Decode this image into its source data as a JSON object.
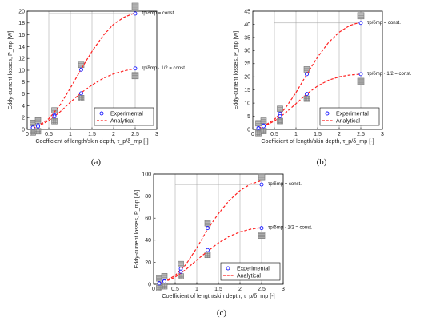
{
  "chart_data": [
    {
      "panel": "(a)",
      "type": "line",
      "ylabel": "Eddy-current losses, P_mp [W]",
      "xlabel": "Coefficient of length/skin depth, τ_p/δ_mp [-]",
      "xlim": [
        0,
        3
      ],
      "ylim": [
        0,
        20
      ],
      "xticks": [
        0,
        0.5,
        1,
        1.5,
        2,
        2.5,
        3
      ],
      "yticks": [
        0,
        2,
        4,
        6,
        8,
        10,
        12,
        14,
        16,
        18,
        20
      ],
      "legend": {
        "position": "bottom-right",
        "entries": [
          "Experimental",
          "Analytical"
        ]
      },
      "series": [
        {
          "name": "Experimental",
          "x": [
            0.13,
            0.25,
            0.63,
            1.25,
            2.5,
            0.13,
            0.25,
            0.63,
            1.25,
            2.5
          ],
          "y": [
            0.3,
            0.7,
            2.4,
            10.1,
            19.6,
            0.3,
            0.5,
            2.2,
            6.1,
            10.3
          ]
        },
        {
          "name": "Analytical",
          "curves": [
            {
              "x": [
                0.13,
                0.25,
                0.5,
                0.75,
                1.0,
                1.25,
                1.5,
                1.75,
                2.0,
                2.25,
                2.5
              ],
              "y": [
                0.2,
                0.6,
                1.8,
                4.0,
                7.0,
                10.2,
                13.2,
                15.8,
                17.8,
                19.0,
                19.7
              ]
            },
            {
              "x": [
                0.13,
                0.25,
                0.5,
                0.75,
                1.0,
                1.25,
                1.5,
                1.75,
                2.0,
                2.25,
                2.5
              ],
              "y": [
                0.2,
                0.5,
                1.5,
                2.9,
                4.6,
                6.2,
                7.5,
                8.6,
                9.4,
                9.9,
                10.3
              ]
            }
          ]
        }
      ],
      "annotations": [
        "τp/δmp = const.",
        "τp/δmp · 1/2 = const."
      ]
    },
    {
      "panel": "(b)",
      "type": "line",
      "ylabel": "Eddy-current losses, P_mp [W]",
      "xlabel": "Coefficient of length/skin depth, τ_p/δ_mp [-]",
      "xlim": [
        0,
        3
      ],
      "ylim": [
        0,
        45
      ],
      "xticks": [
        0,
        0.5,
        1,
        1.5,
        2,
        2.5,
        3
      ],
      "yticks": [
        0,
        5,
        10,
        15,
        20,
        25,
        30,
        35,
        40,
        45
      ],
      "legend": {
        "position": "bottom-right",
        "entries": [
          "Experimental",
          "Analytical"
        ]
      },
      "series": [
        {
          "name": "Experimental",
          "x": [
            0.13,
            0.25,
            0.63,
            1.25,
            2.5,
            0.13,
            0.25,
            0.63,
            1.25,
            2.5
          ],
          "y": [
            0.5,
            1.5,
            6.0,
            21.0,
            40.5,
            0.4,
            1.2,
            5.0,
            13.5,
            21.0
          ]
        },
        {
          "name": "Analytical",
          "curves": [
            {
              "x": [
                0.13,
                0.25,
                0.5,
                0.75,
                1.0,
                1.25,
                1.5,
                1.75,
                2.0,
                2.25,
                2.5
              ],
              "y": [
                0.4,
                1.2,
                3.8,
                8.0,
                14.0,
                21.0,
                27.5,
                33.0,
                37.0,
                39.6,
                40.8
              ]
            },
            {
              "x": [
                0.13,
                0.25,
                0.5,
                0.75,
                1.0,
                1.25,
                1.5,
                1.75,
                2.0,
                2.25,
                2.5
              ],
              "y": [
                0.4,
                1.0,
                3.2,
                6.2,
                9.8,
                13.5,
                16.5,
                18.7,
                20.0,
                20.7,
                21.0
              ]
            }
          ]
        }
      ],
      "annotations": [
        "τp/δmp = const.",
        "τp/δmp · 1/2 = const."
      ]
    },
    {
      "panel": "(c)",
      "type": "line",
      "ylabel": "Eddy-current losses, P_mp [W]",
      "xlabel": "Coefficient of length/skin depth, τ_p/δ_mp [-]",
      "xlim": [
        0,
        3
      ],
      "ylim": [
        0,
        100
      ],
      "xticks": [
        0,
        0.5,
        1,
        1.5,
        2,
        2.5,
        3
      ],
      "yticks": [
        0,
        20,
        40,
        60,
        80,
        100
      ],
      "legend": {
        "position": "bottom-right",
        "entries": [
          "Experimental",
          "Analytical"
        ]
      },
      "series": [
        {
          "name": "Experimental",
          "x": [
            0.13,
            0.25,
            0.63,
            1.25,
            2.5,
            0.13,
            0.25,
            0.63,
            1.25,
            2.5
          ],
          "y": [
            1.0,
            3.0,
            14.0,
            51.0,
            90.5,
            0.8,
            2.5,
            11.5,
            31.0,
            51.0
          ]
        },
        {
          "name": "Analytical",
          "curves": [
            {
              "x": [
                0.13,
                0.25,
                0.5,
                0.75,
                1.0,
                1.25,
                1.5,
                1.75,
                2.0,
                2.25,
                2.5
              ],
              "y": [
                0.8,
                2.5,
                8.0,
                18.0,
                33.0,
                50.0,
                64.0,
                76.0,
                85.0,
                91.0,
                94.0
              ]
            },
            {
              "x": [
                0.13,
                0.25,
                0.5,
                0.75,
                1.0,
                1.25,
                1.5,
                1.75,
                2.0,
                2.25,
                2.5
              ],
              "y": [
                0.7,
                2.0,
                6.5,
                13.5,
                22.0,
                30.0,
                37.5,
                43.5,
                47.5,
                50.0,
                51.5
              ]
            }
          ]
        }
      ],
      "annotations": [
        "τp/δmp = const.",
        "τp/δmp · 1/2 = const."
      ]
    }
  ],
  "colors": {
    "experimental": "#1a1aff",
    "analytical": "#ff2020",
    "axes": "#000000"
  },
  "caption_labels": [
    "(a)",
    "(b)",
    "(c)"
  ]
}
